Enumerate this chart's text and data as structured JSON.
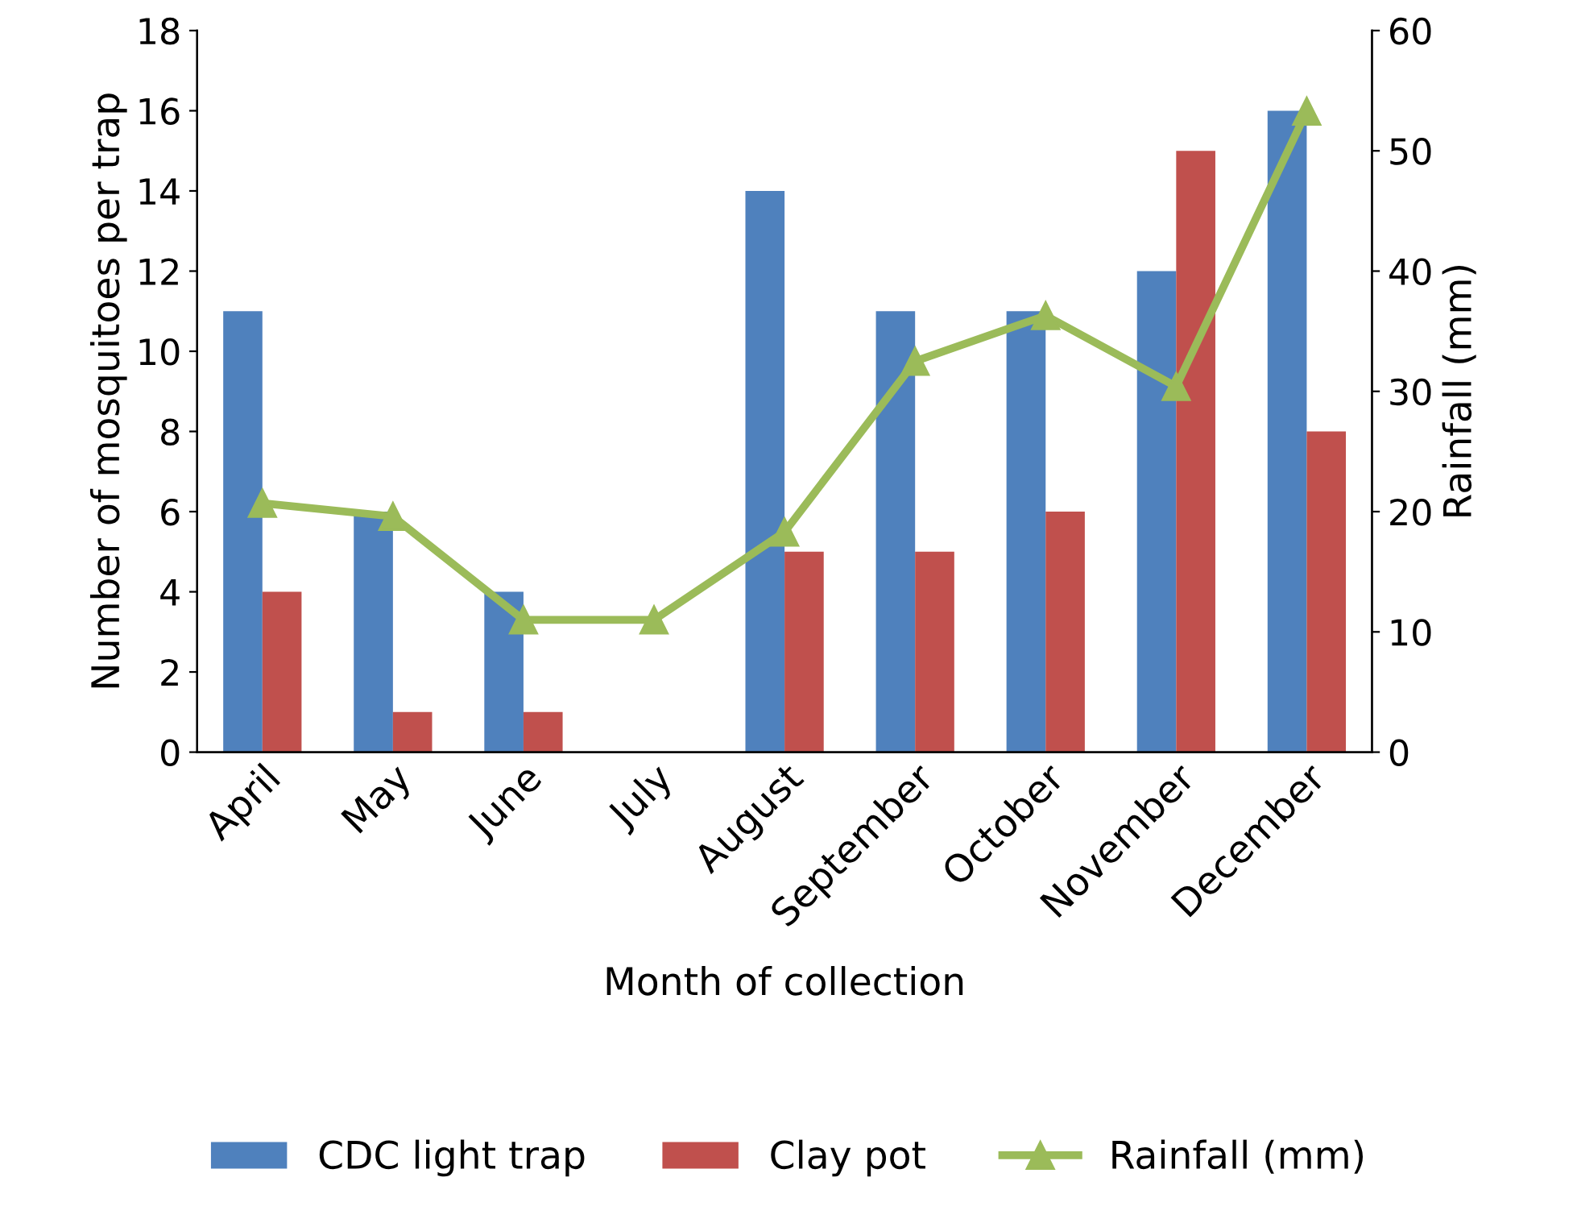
{
  "chart_data": {
    "type": "bar",
    "xlabel": "Month of collection",
    "ylabel": "Number of mosquitoes per trap",
    "y2label": "Rainfall (mm)",
    "categories": [
      "April",
      "May",
      "June",
      "July",
      "August",
      "September",
      "October",
      "November",
      "December"
    ],
    "series": [
      {
        "name": "CDC light trap",
        "color": "#4f81bd",
        "values": [
          11,
          6,
          4,
          0,
          14,
          11,
          11,
          12,
          16
        ]
      },
      {
        "name": "Clay pot",
        "color": "#c0504d",
        "values": [
          4,
          1,
          1,
          0,
          5,
          5,
          6,
          15,
          8
        ]
      },
      {
        "name": "Rainfall (mm)",
        "type": "line",
        "axis": "y2",
        "color": "#9bbb59",
        "marker": "triangle",
        "line_style": "solid",
        "values": [
          20.7,
          19.6,
          11,
          11,
          18.3,
          32.5,
          36.3,
          30.4,
          53.3
        ]
      }
    ],
    "ylim": [
      0,
      18
    ],
    "yticks": [
      0,
      2,
      4,
      6,
      8,
      10,
      12,
      14,
      16,
      18
    ],
    "y2lim": [
      0,
      60
    ],
    "y2ticks": [
      0,
      10,
      20,
      30,
      40,
      50,
      60
    ],
    "grid": false,
    "legend": "bottom"
  }
}
